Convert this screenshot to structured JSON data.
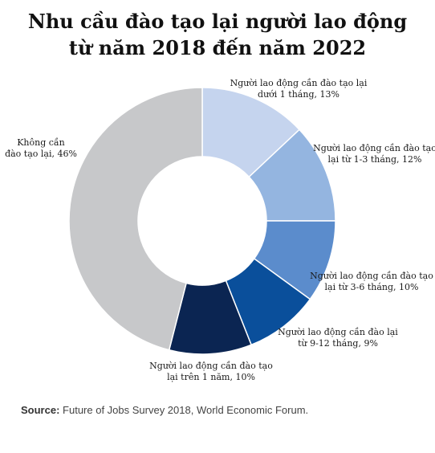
{
  "title": {
    "line1": "Nhu cầu đào tạo lại người lao động",
    "line2": "từ năm 2018 đến năm 2022"
  },
  "source": {
    "label": "Source:",
    "text": "Future of Jobs Survey 2018, World Economic Forum."
  },
  "chart_data": {
    "type": "pie",
    "variant": "donut",
    "title": "Nhu cầu đào tạo lại người lao động từ năm 2018 đến năm 2022",
    "unit": "%",
    "slices": [
      {
        "label_lines": [
          "Người lao động cần đào tạo lại",
          "dưới 1 tháng, 13%"
        ],
        "value": 13,
        "color": "#c5d4ee"
      },
      {
        "label_lines": [
          "Người lao động cần đào tạo",
          "lại từ 1-3 tháng, 12%"
        ],
        "value": 12,
        "color": "#94b5e0"
      },
      {
        "label_lines": [
          "Người lao động cần đào tạo",
          "lại từ 3-6 tháng, 10%"
        ],
        "value": 10,
        "color": "#5b8ccc"
      },
      {
        "label_lines": [
          "Người lao động cần đào lại",
          "từ 9-12 tháng, 9%"
        ],
        "value": 9,
        "color": "#0a4f9b"
      },
      {
        "label_lines": [
          "Người lao động cần đào tạo",
          "lại trên 1 năm, 10%"
        ],
        "value": 10,
        "color": "#0b2552"
      },
      {
        "label_lines": [
          "Không cần",
          "đào tạo lại, 46%"
        ],
        "value": 46,
        "color": "#c7c8ca"
      }
    ]
  }
}
